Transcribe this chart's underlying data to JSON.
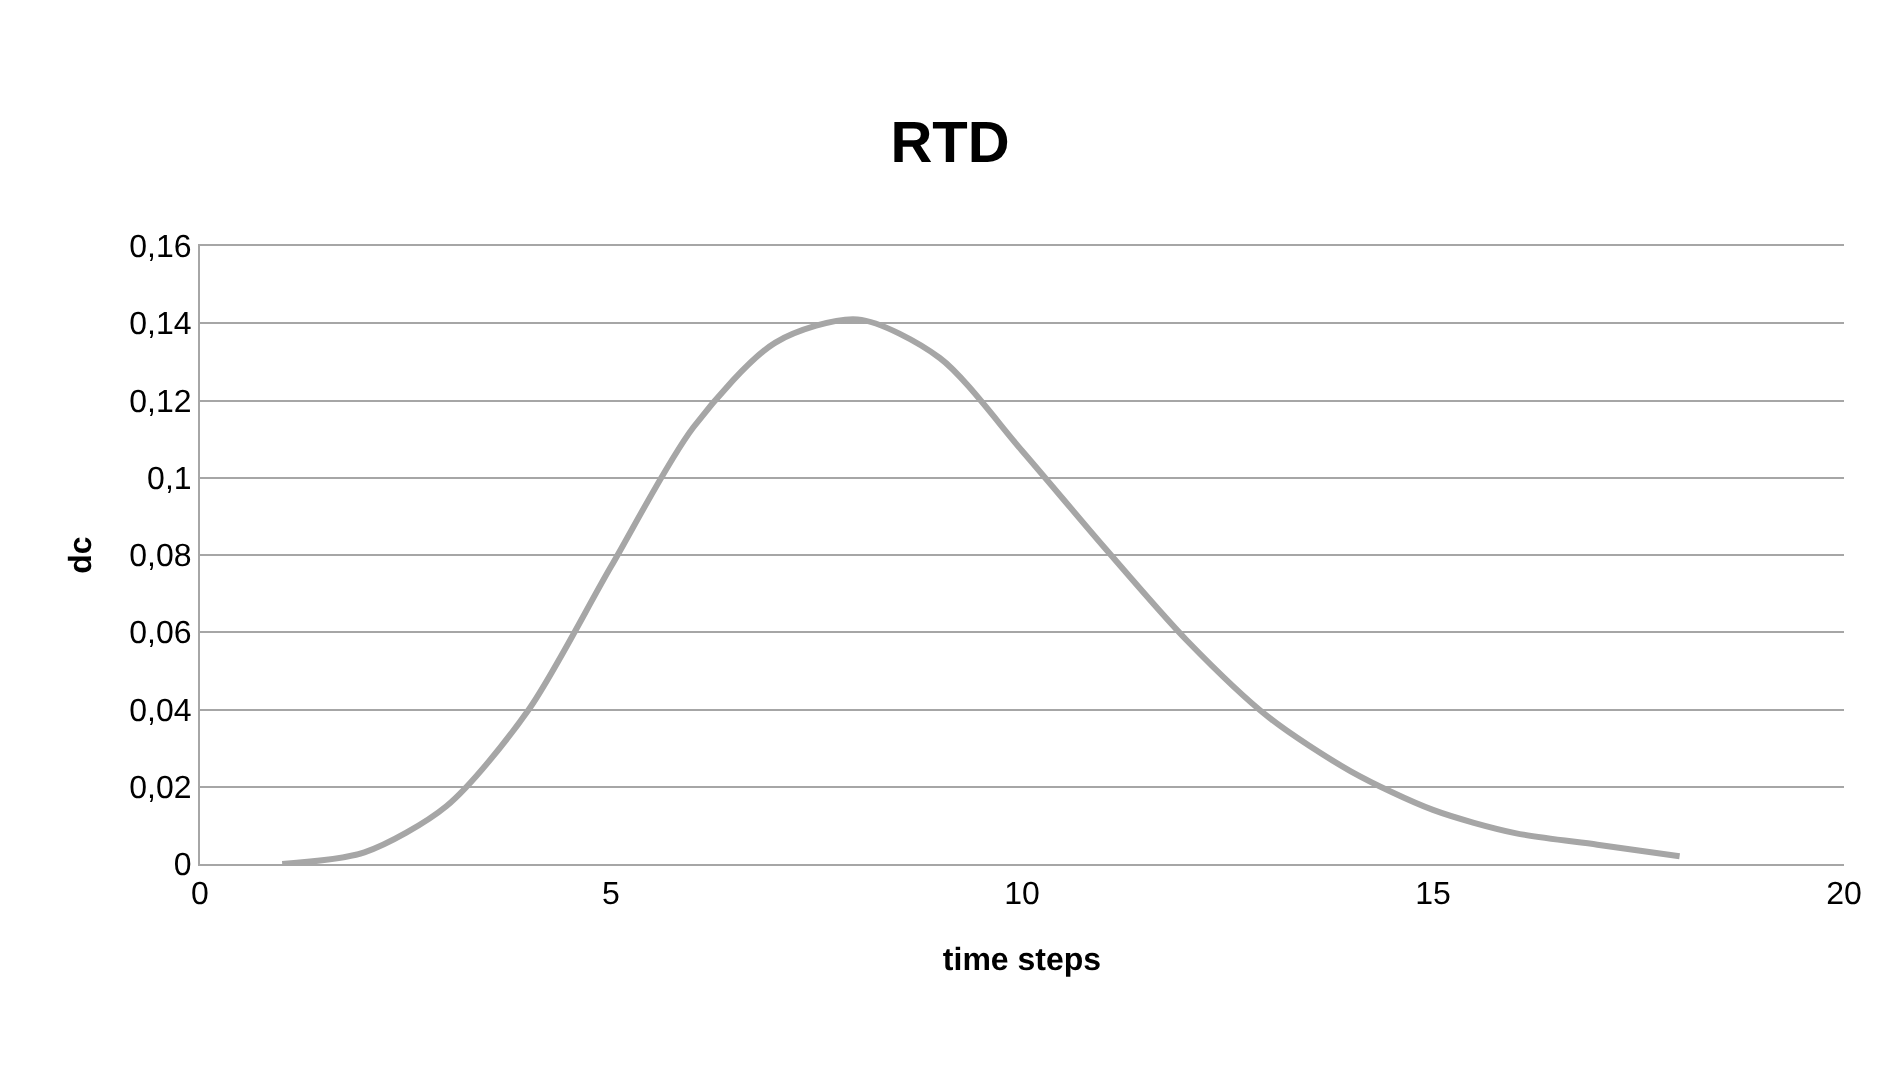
{
  "chart_data": {
    "type": "line",
    "title": "RTD",
    "xlabel": "time steps",
    "ylabel": "dc",
    "x": [
      1,
      2,
      3,
      4,
      5,
      6,
      7,
      8,
      9,
      10,
      11,
      12,
      13,
      14,
      15,
      16,
      17,
      18
    ],
    "series": [
      {
        "color": "#a6a6a6",
        "values": [
          0,
          0.003,
          0.015,
          0.04,
          0.077,
          0.113,
          0.135,
          0.141,
          0.131,
          0.107,
          0.082,
          0.058,
          0.038,
          0.024,
          0.014,
          0.008,
          0.005,
          0.002
        ]
      }
    ],
    "xlim": [
      0,
      20
    ],
    "xticks": [
      0,
      5,
      10,
      15,
      20
    ],
    "ylim": [
      0,
      0.16
    ],
    "yticks": [
      0,
      {
        "value": 0.02,
        "label": "0,02"
      },
      {
        "value": 0.04,
        "label": "0,04"
      },
      {
        "value": 0.06,
        "label": "0,06"
      },
      {
        "value": 0.08,
        "label": "0,08"
      },
      {
        "value": 0.1,
        "label": "0,1"
      },
      {
        "value": 0.12,
        "label": "0,12"
      },
      {
        "value": 0.14,
        "label": "0,14"
      },
      {
        "value": 0.16,
        "label": "0,16"
      }
    ],
    "grid": "y",
    "marker": "none",
    "line_style": "solid"
  }
}
